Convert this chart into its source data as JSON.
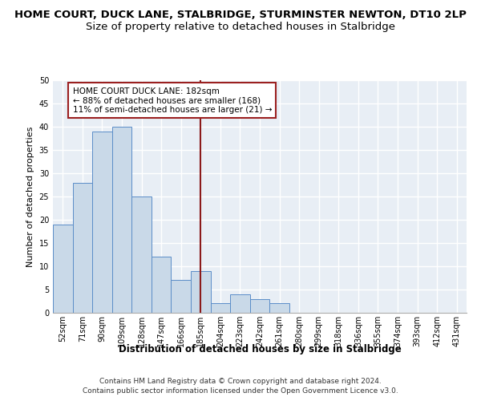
{
  "title": "HOME COURT, DUCK LANE, STALBRIDGE, STURMINSTER NEWTON, DT10 2LP",
  "subtitle": "Size of property relative to detached houses in Stalbridge",
  "xlabel": "Distribution of detached houses by size in Stalbridge",
  "ylabel": "Number of detached properties",
  "categories": [
    "52sqm",
    "71sqm",
    "90sqm",
    "109sqm",
    "128sqm",
    "147sqm",
    "166sqm",
    "185sqm",
    "204sqm",
    "223sqm",
    "242sqm",
    "261sqm",
    "280sqm",
    "299sqm",
    "318sqm",
    "336sqm",
    "355sqm",
    "374sqm",
    "393sqm",
    "412sqm",
    "431sqm"
  ],
  "values": [
    19,
    28,
    39,
    40,
    25,
    12,
    7,
    9,
    2,
    4,
    3,
    2,
    0,
    0,
    0,
    0,
    0,
    0,
    0,
    0,
    0
  ],
  "bar_color": "#c9d9e8",
  "bar_edge_color": "#5b8dc8",
  "vline_x": 7,
  "vline_color": "#8b1a1a",
  "annotation_title": "HOME COURT DUCK LANE: 182sqm",
  "annotation_line1": "← 88% of detached houses are smaller (168)",
  "annotation_line2": "11% of semi-detached houses are larger (21) →",
  "annotation_box_color": "#9b2020",
  "ylim": [
    0,
    50
  ],
  "yticks": [
    0,
    5,
    10,
    15,
    20,
    25,
    30,
    35,
    40,
    45,
    50
  ],
  "footer1": "Contains HM Land Registry data © Crown copyright and database right 2024.",
  "footer2": "Contains public sector information licensed under the Open Government Licence v3.0.",
  "bg_color": "#e8eef5",
  "grid_color": "#ffffff",
  "title_fontsize": 9.5,
  "subtitle_fontsize": 9.5,
  "tick_fontsize": 7,
  "ylabel_fontsize": 8,
  "xlabel_fontsize": 8.5
}
